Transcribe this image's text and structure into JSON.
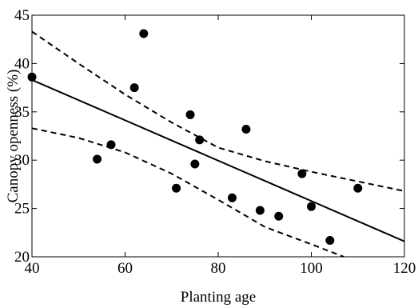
{
  "chart_data": {
    "type": "scatter",
    "title": "",
    "xlabel": "Planting age",
    "ylabel": "Canopy openness (%)",
    "xlim": [
      40,
      120
    ],
    "ylim": [
      20,
      45
    ],
    "xticks": [
      40,
      60,
      80,
      100,
      120
    ],
    "yticks": [
      20,
      25,
      30,
      35,
      40,
      45
    ],
    "x_tick_labels": [
      "40",
      "60",
      "80",
      "100",
      "120"
    ],
    "y_tick_labels": [
      "20",
      "25",
      "30",
      "35",
      "40",
      "45"
    ],
    "grid": false,
    "legend": "none",
    "series": [
      {
        "type": "scatter",
        "marker_color": "#000000",
        "points": [
          {
            "x": 40,
            "y": 38.6
          },
          {
            "x": 54,
            "y": 30.1
          },
          {
            "x": 57,
            "y": 31.6
          },
          {
            "x": 62,
            "y": 37.5
          },
          {
            "x": 64,
            "y": 43.1
          },
          {
            "x": 71,
            "y": 27.1
          },
          {
            "x": 74,
            "y": 34.7
          },
          {
            "x": 75,
            "y": 29.6
          },
          {
            "x": 76,
            "y": 32.1
          },
          {
            "x": 83,
            "y": 26.1
          },
          {
            "x": 86,
            "y": 33.2
          },
          {
            "x": 89,
            "y": 24.8
          },
          {
            "x": 93,
            "y": 24.2
          },
          {
            "x": 98,
            "y": 28.6
          },
          {
            "x": 100,
            "y": 25.2
          },
          {
            "x": 104,
            "y": 21.7
          },
          {
            "x": 110,
            "y": 27.1
          }
        ]
      },
      {
        "type": "line",
        "style": "solid",
        "color": "#000000",
        "x": [
          40,
          120
        ],
        "y": [
          38.3,
          21.6
        ]
      },
      {
        "type": "line",
        "style": "dashed",
        "color": "#000000",
        "x": [
          40,
          50,
          60,
          70,
          80,
          90,
          100,
          110,
          120
        ],
        "y": [
          43.3,
          40.0,
          36.8,
          33.9,
          31.3,
          29.9,
          28.8,
          27.8,
          26.8
        ]
      },
      {
        "type": "line",
        "style": "dashed",
        "color": "#000000",
        "x": [
          40,
          50,
          60,
          70,
          80,
          90,
          100,
          107
        ],
        "y": [
          33.3,
          32.3,
          30.8,
          28.6,
          25.9,
          23.1,
          21.3,
          20.0
        ]
      }
    ]
  }
}
